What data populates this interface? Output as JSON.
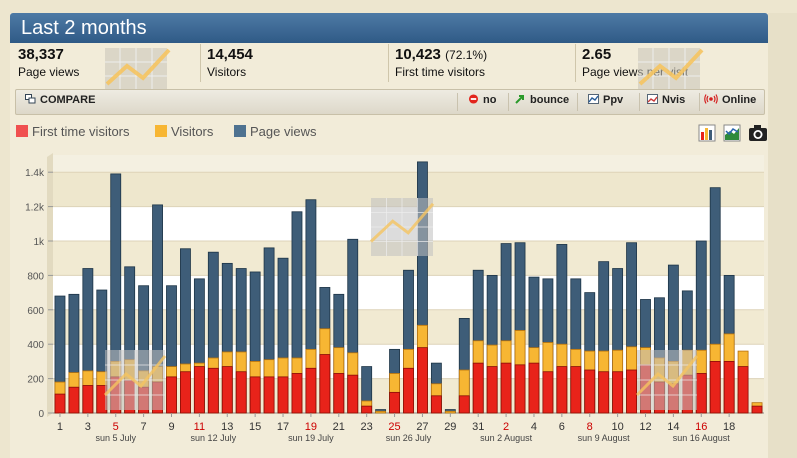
{
  "title": "Last 2 months",
  "stats": [
    {
      "value": "38,337",
      "pct": "",
      "label": "Page views"
    },
    {
      "value": "14,454",
      "pct": "",
      "label": "Visitors"
    },
    {
      "value": "10,423",
      "pct": "(72.1%)",
      "label": "First time visitors"
    },
    {
      "value": "2.65",
      "pct": "",
      "label": "Page views per visit"
    }
  ],
  "compare": {
    "label": "COMPARE",
    "buttons": [
      {
        "label": "no",
        "icon": "no-entry-icon"
      },
      {
        "label": "bounce",
        "icon": "bounce-arrow-icon"
      },
      {
        "label": "Ppv",
        "icon": "ppv-chart-icon"
      },
      {
        "label": "Nvis",
        "icon": "nvis-chart-icon"
      },
      {
        "label": "Online",
        "icon": "online-radio-icon"
      }
    ]
  },
  "colors": {
    "first_time": "#e8231a",
    "visitors": "#f7b633",
    "page_views": "#3e5d78",
    "weekend_tick": "#cc0000"
  },
  "chart_data": {
    "type": "bar",
    "series": [
      {
        "name": "First time visitors",
        "values": [
          110,
          150,
          160,
          160,
          210,
          190,
          150,
          180,
          210,
          240,
          270,
          260,
          270,
          240,
          210,
          210,
          210,
          230,
          260,
          340,
          230,
          220,
          40,
          0,
          120,
          260,
          380,
          100,
          0,
          100,
          290,
          270,
          290,
          280,
          290,
          240,
          270,
          270,
          250,
          240,
          240,
          250,
          280,
          180,
          170,
          220,
          230,
          300,
          300,
          270,
          40
        ]
      },
      {
        "name": "Visitors",
        "values": [
          180,
          235,
          245,
          240,
          300,
          310,
          245,
          270,
          270,
          285,
          290,
          320,
          355,
          355,
          300,
          310,
          320,
          320,
          370,
          490,
          380,
          350,
          70,
          10,
          230,
          370,
          510,
          170,
          10,
          250,
          420,
          395,
          420,
          480,
          380,
          410,
          400,
          370,
          360,
          360,
          365,
          385,
          380,
          320,
          300,
          365,
          365,
          400,
          460,
          360,
          60
        ]
      },
      {
        "name": "Page views",
        "values": [
          680,
          690,
          840,
          715,
          1390,
          850,
          740,
          1210,
          740,
          955,
          780,
          935,
          870,
          840,
          820,
          960,
          900,
          1170,
          1240,
          730,
          690,
          1010,
          270,
          20,
          370,
          830,
          1460,
          290,
          20,
          550,
          830,
          800,
          985,
          990,
          790,
          780,
          980,
          780,
          700,
          880,
          840,
          990,
          660,
          670,
          860,
          710,
          1000,
          1310,
          800,
          110,
          0
        ]
      }
    ],
    "x_tick_labels": [
      "1",
      "3",
      "5",
      "7",
      "9",
      "11",
      "13",
      "15",
      "17",
      "19",
      "21",
      "23",
      "25",
      "27",
      "29",
      "31",
      "2",
      "4",
      "6",
      "8",
      "10",
      "12",
      "14",
      "16",
      "18"
    ],
    "x_tick_red": [
      "5",
      "11",
      "19",
      "25",
      "2",
      "8",
      "16"
    ],
    "week_labels": [
      "sun 5 July",
      "sun 12 July",
      "sun 19 July",
      "sun 26 July",
      "sun 2 August",
      "sun 9 August",
      "sun 16 August"
    ],
    "y_ticks": [
      "0",
      "200",
      "400",
      "600",
      "800",
      "1k",
      "1.2k",
      "1.4k"
    ],
    "ylim": [
      0,
      1500
    ],
    "grid": true,
    "legend_position": "top-left"
  }
}
